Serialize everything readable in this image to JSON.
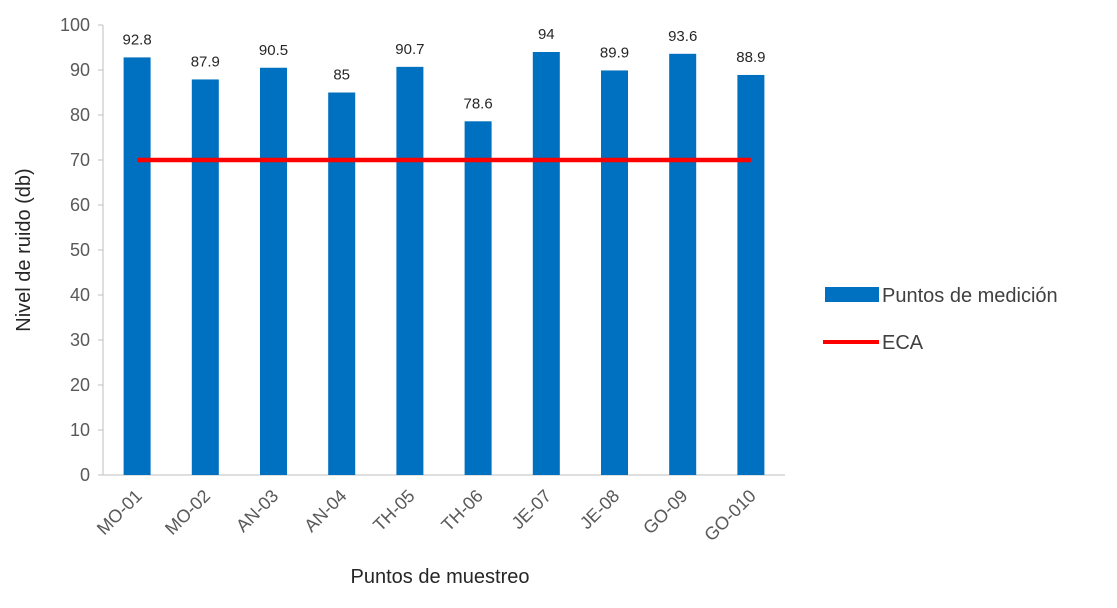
{
  "chart_data": {
    "type": "bar",
    "categories": [
      "MO-01",
      "MO-02",
      "AN-03",
      "AN-04",
      "TH-05",
      "TH-06",
      "JE-07",
      "JE-08",
      "GO-09",
      "GO-010"
    ],
    "series": [
      {
        "name": "Puntos de medición",
        "type": "bar",
        "color": "#0070C0",
        "values": [
          92.8,
          87.9,
          90.5,
          85,
          90.7,
          78.6,
          94,
          89.9,
          93.6,
          88.9
        ],
        "data_labels": [
          "92.8",
          "87.9",
          "90.5",
          "85",
          "90.7",
          "78.6",
          "94",
          "89.9",
          "93.6",
          "88.9"
        ]
      },
      {
        "name": "ECA",
        "type": "line",
        "color": "#FF0000",
        "values": [
          70,
          70,
          70,
          70,
          70,
          70,
          70,
          70,
          70,
          70
        ]
      }
    ],
    "title": "",
    "xlabel": "Puntos de muestreo",
    "ylabel": "Nivel de ruido (db)",
    "ylim": [
      0,
      100
    ],
    "yticks": [
      0,
      10,
      20,
      30,
      40,
      50,
      60,
      70,
      80,
      90,
      100
    ],
    "grid": false,
    "legend_position": "right"
  }
}
